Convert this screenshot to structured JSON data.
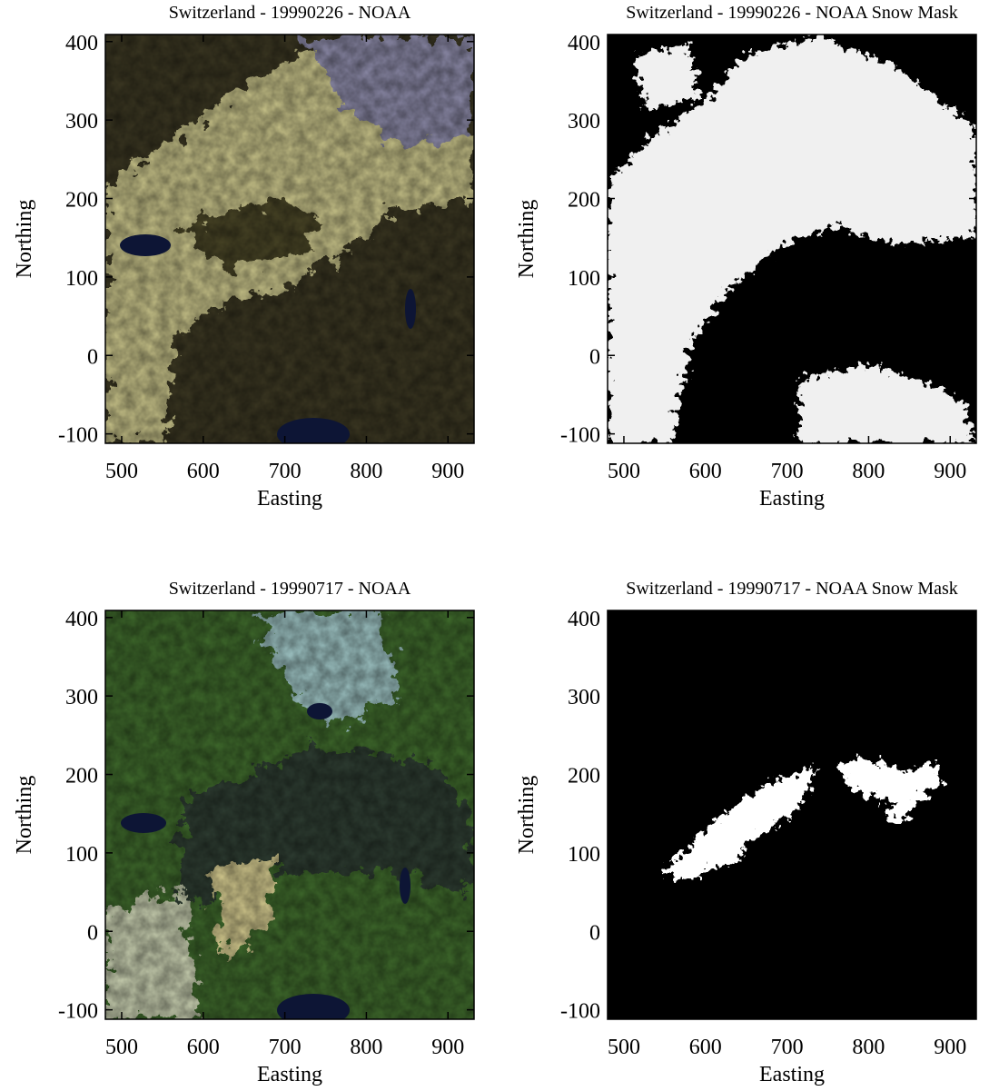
{
  "chart_data": [
    {
      "type": "image",
      "title": "Switzerland - 19990226 - NOAA",
      "xlabel": "Easting",
      "ylabel": "Northing",
      "xlim": [
        480,
        932
      ],
      "ylim": [
        -112,
        409
      ],
      "xticks": [
        500,
        600,
        700,
        800,
        900
      ],
      "yticks": [
        -100,
        0,
        100,
        200,
        300,
        400
      ]
    },
    {
      "type": "image",
      "title": "Switzerland - 19990226 - NOAA Snow Mask",
      "xlabel": "Easting",
      "ylabel": "Northing",
      "xlim": [
        480,
        932
      ],
      "ylim": [
        -112,
        409
      ],
      "xticks": [
        500,
        600,
        700,
        800,
        900
      ],
      "yticks": [
        -100,
        0,
        100,
        200,
        300,
        400
      ]
    },
    {
      "type": "image",
      "title": "Switzerland - 19990717 - NOAA",
      "xlabel": "Easting",
      "ylabel": "Northing",
      "xlim": [
        480,
        932
      ],
      "ylim": [
        -112,
        409
      ],
      "xticks": [
        500,
        600,
        700,
        800,
        900
      ],
      "yticks": [
        -100,
        0,
        100,
        200,
        300,
        400
      ]
    },
    {
      "type": "image",
      "title": "Switzerland - 19990717 - NOAA Snow Mask",
      "xlabel": "Easting",
      "ylabel": "Northing",
      "xlim": [
        480,
        932
      ],
      "ylim": [
        -112,
        409
      ],
      "xticks": [
        500,
        600,
        700,
        800,
        900
      ],
      "yticks": [
        -100,
        0,
        100,
        200,
        300,
        400
      ]
    }
  ]
}
